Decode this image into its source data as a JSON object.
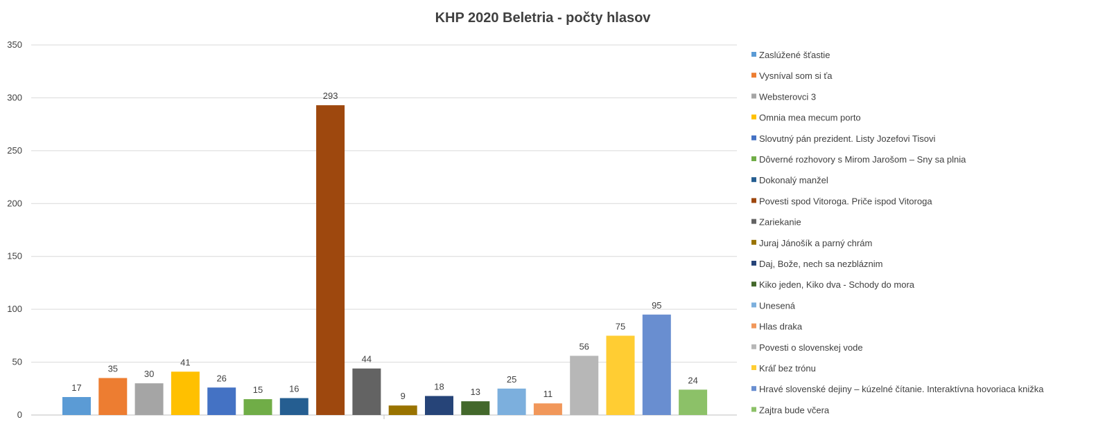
{
  "chart_data": {
    "type": "bar",
    "title": "KHP 2020 Beletria - počty hlasov",
    "xlabel": "",
    "ylabel": "",
    "ylim": [
      0,
      350
    ],
    "yticks": [
      0,
      50,
      100,
      150,
      200,
      250,
      300,
      350
    ],
    "grid": true,
    "legend_position": "right",
    "series": [
      {
        "name": "Zaslúžené šťastie",
        "value": 17,
        "color": "#5b9bd5"
      },
      {
        "name": "Vysníval som si ťa",
        "value": 35,
        "color": "#ed7d31"
      },
      {
        "name": "Websterovci 3",
        "value": 30,
        "color": "#a5a5a5"
      },
      {
        "name": "Omnia mea mecum porto",
        "value": 41,
        "color": "#ffc000"
      },
      {
        "name": "Slovutný pán prezident. Listy Jozefovi Tisovi",
        "value": 26,
        "color": "#4472c4"
      },
      {
        "name": "Dôverné rozhovory s Mirom Jarošom – Sny sa plnia",
        "value": 15,
        "color": "#70ad47"
      },
      {
        "name": "Dokonalý manžel",
        "value": 16,
        "color": "#255e91"
      },
      {
        "name": "Povesti spod Vitoroga. Priče ispod Vitoroga",
        "value": 293,
        "color": "#9e480e"
      },
      {
        "name": "Zariekanie",
        "value": 44,
        "color": "#636363"
      },
      {
        "name": "Juraj Jánošík a parný chrám",
        "value": 9,
        "color": "#997300"
      },
      {
        "name": "Daj, Bože, nech sa nezbláznim",
        "value": 18,
        "color": "#264478"
      },
      {
        "name": "Kiko jeden, Kiko dva - Schody do mora",
        "value": 13,
        "color": "#43682b"
      },
      {
        "name": "Unesená",
        "value": 25,
        "color": "#7cafdd"
      },
      {
        "name": "Hlas draka",
        "value": 11,
        "color": "#f1975a"
      },
      {
        "name": "Povesti o slovenskej vode",
        "value": 56,
        "color": "#b7b7b7"
      },
      {
        "name": "Kráľ bez trónu",
        "value": 75,
        "color": "#ffcd33"
      },
      {
        "name": "Hravé slovenské dejiny – kúzelné čítanie. Interaktívna hovoriaca knižka",
        "value": 95,
        "color": "#698ed0"
      },
      {
        "name": "Zajtra bude včera",
        "value": 24,
        "color": "#8cc168"
      }
    ]
  }
}
